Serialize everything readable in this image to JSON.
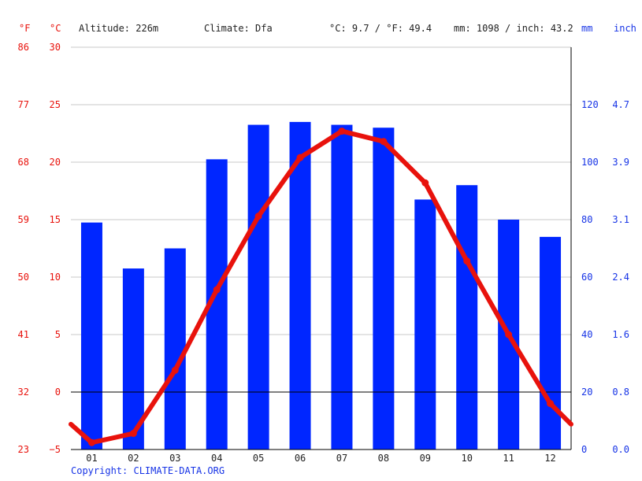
{
  "header": {
    "unit_f": "°F",
    "unit_c": "°C",
    "altitude": "Altitude: 226m",
    "climate": "Climate: Dfa",
    "temp_avg": "°C: 9.7 / °F: 49.4",
    "precip_avg": "mm: 1098 / inch: 43.2",
    "unit_mm": "mm",
    "unit_inch": "inch"
  },
  "footer": {
    "copyright": "Copyright: CLIMATE-DATA.ORG"
  },
  "colors": {
    "temperature": "#e8120c",
    "precipitation": "#0026ff",
    "axis_temp": "#e8120c",
    "axis_precip": "#1734e6"
  },
  "chart_data": {
    "type": "bar",
    "categories": [
      "01",
      "02",
      "03",
      "04",
      "05",
      "06",
      "07",
      "08",
      "09",
      "10",
      "11",
      "12"
    ],
    "series": [
      {
        "type": "bar",
        "axis": "right",
        "values": [
          79,
          63,
          70,
          101,
          113,
          114,
          113,
          112,
          87,
          92,
          80,
          74
        ]
      },
      {
        "type": "line",
        "axis": "left",
        "values": [
          -4.4,
          -3.6,
          1.9,
          8.9,
          15.3,
          20.4,
          22.7,
          21.8,
          18.2,
          11.4,
          5.0,
          -1.0
        ],
        "boundary": [
          -2.8,
          -2.8
        ]
      }
    ],
    "left_axis_c": {
      "ticks": [
        "30",
        "25",
        "20",
        "15",
        "10",
        "5",
        "0",
        "−5"
      ],
      "range": [
        -5,
        30
      ]
    },
    "left_axis_f": {
      "ticks": [
        "86",
        "77",
        "68",
        "59",
        "50",
        "41",
        "32",
        "23"
      ]
    },
    "right_axis_mm": {
      "ticks": [
        "120",
        "100",
        "80",
        "60",
        "40",
        "20",
        "0"
      ],
      "range": [
        0,
        140
      ]
    },
    "right_axis_inch": {
      "ticks": [
        "4.7",
        "3.9",
        "3.1",
        "2.4",
        "1.6",
        "0.8",
        "0.0"
      ]
    },
    "grid": true
  }
}
